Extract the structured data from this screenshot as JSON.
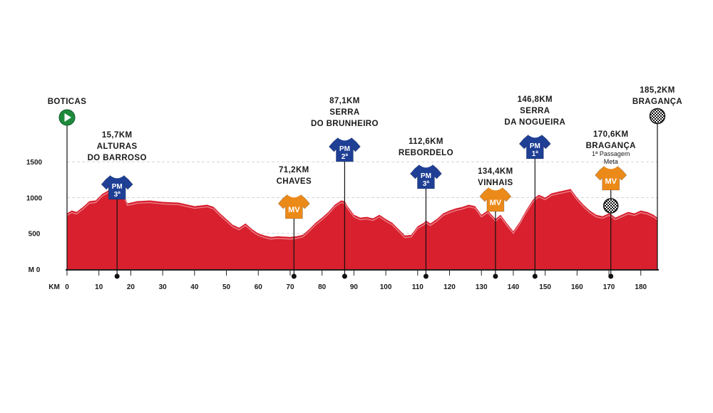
{
  "chart_data": {
    "type": "area",
    "x_unit": "KM",
    "y_unit": "M",
    "xlim": [
      0,
      185.2
    ],
    "ylim": [
      0,
      1950
    ],
    "x_ticks": [
      0,
      10,
      20,
      30,
      40,
      50,
      60,
      70,
      80,
      90,
      100,
      110,
      120,
      130,
      140,
      150,
      160,
      170,
      180
    ],
    "y_ticks": [
      0,
      500,
      1000,
      1500
    ],
    "y_gridlines": [
      500,
      1000,
      1500
    ],
    "profile": {
      "x": [
        0,
        1.5,
        3,
        5,
        7,
        9,
        11,
        13,
        14.5,
        15.7,
        17,
        19,
        22,
        26,
        30,
        35,
        40,
        44,
        46,
        48,
        50,
        52,
        54,
        56,
        58,
        60,
        62,
        64,
        66,
        68,
        70,
        72,
        74,
        76,
        78,
        80,
        82,
        84,
        86,
        87.1,
        88,
        90,
        92,
        94,
        96,
        98,
        100,
        102,
        104,
        106,
        108,
        110,
        112,
        112.6,
        114,
        116,
        118,
        120,
        122,
        124,
        126,
        128,
        130,
        132,
        134.4,
        136,
        138,
        140,
        142,
        144,
        146,
        146.8,
        148,
        150,
        152,
        154,
        156,
        158,
        160,
        162,
        164,
        166,
        168,
        170,
        170.6,
        172,
        174,
        176,
        178,
        180,
        182,
        184,
        185.2
      ],
      "y": [
        780,
        820,
        800,
        870,
        950,
        960,
        1050,
        1100,
        1150,
        1200,
        1120,
        920,
        950,
        960,
        940,
        930,
        880,
        900,
        870,
        780,
        700,
        620,
        580,
        640,
        560,
        500,
        470,
        450,
        460,
        455,
        450,
        460,
        480,
        560,
        650,
        720,
        800,
        900,
        960,
        950,
        880,
        760,
        720,
        730,
        710,
        760,
        700,
        650,
        560,
        470,
        480,
        600,
        650,
        680,
        640,
        700,
        780,
        820,
        850,
        870,
        900,
        880,
        760,
        820,
        700,
        760,
        640,
        530,
        660,
        820,
        960,
        1000,
        1040,
        1000,
        1060,
        1080,
        1100,
        1120,
        1000,
        900,
        820,
        760,
        740,
        780,
        770,
        720,
        760,
        800,
        780,
        820,
        800,
        760,
        720
      ]
    },
    "markers": [
      {
        "id": "start",
        "km_label": "",
        "name_lines": [
          "BOTICAS"
        ],
        "note_lines": [],
        "x": 0,
        "kind": "start"
      },
      {
        "id": "pm1",
        "km_label": "15,7KM",
        "name_lines": [
          "ALTURAS",
          "DO BARROSO"
        ],
        "note_lines": [],
        "x": 15.7,
        "kind": "pm",
        "badge_top": "PM",
        "badge_bottom": "3ª"
      },
      {
        "id": "mv1",
        "km_label": "71,2KM",
        "name_lines": [
          "CHAVES"
        ],
        "note_lines": [],
        "x": 71.2,
        "kind": "mv",
        "badge_top": "MV",
        "badge_bottom": ""
      },
      {
        "id": "pm2",
        "km_label": "87,1KM",
        "name_lines": [
          "SERRA",
          "DO BRUNHEIRO"
        ],
        "note_lines": [],
        "x": 87.1,
        "kind": "pm",
        "badge_top": "PM",
        "badge_bottom": "2ª"
      },
      {
        "id": "pm3",
        "km_label": "112,6KM",
        "name_lines": [
          "REBORDELO"
        ],
        "note_lines": [],
        "x": 112.6,
        "kind": "pm",
        "badge_top": "PM",
        "badge_bottom": "3ª"
      },
      {
        "id": "mv2",
        "km_label": "134,4KM",
        "name_lines": [
          "VINHAIS"
        ],
        "note_lines": [],
        "x": 134.4,
        "kind": "mv",
        "badge_top": "MV",
        "badge_bottom": ""
      },
      {
        "id": "pm4",
        "km_label": "146,8KM",
        "name_lines": [
          "SERRA",
          "DA NOGUEIRA"
        ],
        "note_lines": [],
        "x": 146.8,
        "kind": "pm",
        "badge_top": "PM",
        "badge_bottom": "1ª"
      },
      {
        "id": "mv3",
        "km_label": "170,6KM",
        "name_lines": [
          "BRAGANÇA"
        ],
        "note_lines": [
          "1ª Passagem",
          "Meta"
        ],
        "x": 170.6,
        "kind": "mv-pass",
        "badge_top": "MV",
        "badge_bottom": ""
      },
      {
        "id": "finish",
        "km_label": "185,2KM",
        "name_lines": [
          "BRAGANÇA"
        ],
        "note_lines": [],
        "x": 185.2,
        "kind": "finish"
      }
    ],
    "colors": {
      "fill": "#d8202e",
      "fill_dark": "#b3141f",
      "ridge": "#f2a7ad",
      "pm_jersey": "#1f3f95",
      "mv_jersey": "#ec8a19",
      "start": "#1f8a3c",
      "gridline": "#d4d4d4",
      "axis": "#222222"
    }
  }
}
